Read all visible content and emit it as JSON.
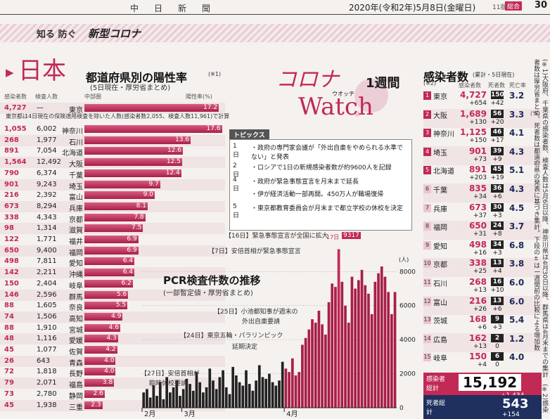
{
  "header": {
    "newspaper": "中日新聞",
    "date": "2020年(令和2年)5月8日(金曜日)",
    "edition": "11版",
    "badge": "総合",
    "page": "30"
  },
  "band": {
    "brand_prefix": "知る 防ぐ",
    "brand_main": "新型コロナ"
  },
  "japan": {
    "label": "日本",
    "title": "都道府県別の陽性率",
    "note_mark": "(※1)",
    "source": "(5日現在・厚労省まとめ)",
    "col_cases": "感染者数",
    "col_tests": "検査人数",
    "col_bar_label": "中部圏",
    "col_rate": "陽性率(%)",
    "tokyo_footnote": "東京都は4日現在の保険適用検査を除いた人数(感染者数2,055、検査人数11,961)で計算",
    "rows": [
      {
        "cases": "4,727",
        "tests": "—",
        "pref": "東京",
        "rate": "17.2"
      },
      {
        "cases": "1,055",
        "tests": "6,002",
        "pref": "神奈川",
        "rate": "17.6"
      },
      {
        "cases": "268",
        "tests": "1,977",
        "pref": "石川",
        "rate": "13.6"
      },
      {
        "cases": "891",
        "tests": "7,054",
        "pref": "北海道",
        "rate": "12.6"
      },
      {
        "cases": "1,564",
        "tests": "12,492",
        "pref": "大阪",
        "rate": "12.5"
      },
      {
        "cases": "790",
        "tests": "6,374",
        "pref": "千葉",
        "rate": "12.4"
      },
      {
        "cases": "901",
        "tests": "9,243",
        "pref": "埼玉",
        "rate": "9.7"
      },
      {
        "cases": "216",
        "tests": "2,392",
        "pref": "富山",
        "rate": "9.0"
      },
      {
        "cases": "673",
        "tests": "8,294",
        "pref": "兵庫",
        "rate": "8.1"
      },
      {
        "cases": "338",
        "tests": "4,343",
        "pref": "京都",
        "rate": "7.8"
      },
      {
        "cases": "98",
        "tests": "1,314",
        "pref": "滋賀",
        "rate": "7.5"
      },
      {
        "cases": "122",
        "tests": "1,771",
        "pref": "福井",
        "rate": "6.9"
      },
      {
        "cases": "650",
        "tests": "9,400",
        "pref": "福岡",
        "rate": "6.9"
      },
      {
        "cases": "498",
        "tests": "7,811",
        "pref": "愛知",
        "rate": "6.4"
      },
      {
        "cases": "142",
        "tests": "2,211",
        "pref": "沖縄",
        "rate": "6.4"
      },
      {
        "cases": "150",
        "tests": "2,404",
        "pref": "岐阜",
        "rate": "6.2"
      },
      {
        "cases": "146",
        "tests": "2,596",
        "pref": "群馬",
        "rate": "5.6"
      },
      {
        "cases": "88",
        "tests": "1,605",
        "pref": "奈良",
        "rate": "5.5"
      },
      {
        "cases": "74",
        "tests": "1,506",
        "pref": "高知",
        "rate": "4.9"
      },
      {
        "cases": "88",
        "tests": "1,910",
        "pref": "宮城",
        "rate": "4.6"
      },
      {
        "cases": "48",
        "tests": "1,116",
        "pref": "愛媛",
        "rate": "4.3"
      },
      {
        "cases": "45",
        "tests": "1,077",
        "pref": "佐賀",
        "rate": "4.2"
      },
      {
        "cases": "26",
        "tests": "643",
        "pref": "青森",
        "rate": "4.0"
      },
      {
        "cases": "72",
        "tests": "1,818",
        "pref": "長野",
        "rate": "4.0"
      },
      {
        "cases": "79",
        "tests": "2,071",
        "pref": "福島",
        "rate": "3.8"
      },
      {
        "cases": "73",
        "tests": "2,780",
        "pref": "静岡",
        "rate": "2.6"
      },
      {
        "cases": "45",
        "tests": "1,938",
        "pref": "三重",
        "rate": "2.3"
      }
    ]
  },
  "watch": {
    "corona": "コロナ",
    "week": "1週間",
    "watch": "Watch",
    "ruby": "ウオッチ"
  },
  "topics": {
    "label": "トピックス",
    "items": [
      {
        "day": "1日",
        "text": "・政府の専門家会議が「外出自粛をやめられる水準でない」と発表"
      },
      {
        "day": "2日",
        "text": "・ロシアで1日の新規感染者数が約9600人を記録"
      },
      {
        "day": "4日",
        "text": "・政府が緊急事態宣言を月末まで延長"
      },
      {
        "day": "",
        "text": "・伊が経済活動一部再開。450万人が職場復帰"
      },
      {
        "day": "5日",
        "text": "・東京都教育委員会が月末まで都立学校の休校を決定"
      }
    ]
  },
  "pcr": {
    "title": "PCR検査件数の推移",
    "source": "(一部暫定値・厚労省まとめ)",
    "ann_16": "【16日】緊急事態宣言が全国に拡大",
    "ann_7": "【7日】安倍首相が緊急事態宣言",
    "ann_25a": "【25日】小池都知事が週末の",
    "ann_25b": "外出自粛要請",
    "ann_24a": "【24日】東京五輪・パラリンピック",
    "ann_24b": "延期決定",
    "ann_27a": "【27日】安倍首相が",
    "ann_27b": "臨時休校要請",
    "peak_label": "17日",
    "peak_value": "9317",
    "unit": "(人)"
  },
  "cases": {
    "title": "感染者数",
    "title_sub": "(累計・5日現在)",
    "note": "(※2)",
    "col_cases": "感染者数",
    "col_deaths": "死者数",
    "col_rate": "死亡率",
    "col_pct": "(%)",
    "rows": [
      {
        "no": "1",
        "pref": "東京",
        "cases": "4,727",
        "inc": "+654",
        "deaths": "150",
        "dinc": "+42",
        "rate": "3.2"
      },
      {
        "no": "2",
        "pref": "大阪",
        "cases": "1,689",
        "inc": "+130",
        "deaths": "56",
        "dinc": "+20",
        "rate": "3.3"
      },
      {
        "no": "3",
        "pref": "神奈川",
        "cases": "1,125",
        "inc": "+150",
        "deaths": "46",
        "dinc": "+17",
        "rate": "4.1"
      },
      {
        "no": "4",
        "pref": "埼玉",
        "cases": "901",
        "inc": "+73",
        "deaths": "39",
        "dinc": "+9",
        "rate": "4.3"
      },
      {
        "no": "5",
        "pref": "北海道",
        "cases": "891",
        "inc": "+203",
        "deaths": "45",
        "dinc": "+19",
        "rate": "5.1"
      },
      {
        "no": "6",
        "pref": "千葉",
        "cases": "835",
        "inc": "+34",
        "deaths": "36",
        "dinc": "+6",
        "rate": "4.3"
      },
      {
        "no": "7",
        "pref": "兵庫",
        "cases": "673",
        "inc": "+37",
        "deaths": "30",
        "dinc": "+3",
        "rate": "4.5"
      },
      {
        "no": "8",
        "pref": "福岡",
        "cases": "650",
        "inc": "+31",
        "deaths": "24",
        "dinc": "+8",
        "rate": "3.7"
      },
      {
        "no": "9",
        "pref": "愛知",
        "cases": "498",
        "inc": "+16",
        "deaths": "34",
        "dinc": "+3",
        "rate": "6.8"
      },
      {
        "no": "10",
        "pref": "京都",
        "cases": "338",
        "inc": "+25",
        "deaths": "13",
        "dinc": "+4",
        "rate": "3.8"
      },
      {
        "no": "11",
        "pref": "石川",
        "cases": "268",
        "inc": "+13",
        "deaths": "16",
        "dinc": "+10",
        "rate": "6.0"
      },
      {
        "no": "12",
        "pref": "富山",
        "cases": "216",
        "inc": "+26",
        "deaths": "13",
        "dinc": "+6",
        "rate": "6.0"
      },
      {
        "no": "13",
        "pref": "茨城",
        "cases": "168",
        "inc": "+6",
        "deaths": "9",
        "dinc": "+3",
        "rate": "5.4"
      },
      {
        "no": "14",
        "pref": "広島",
        "cases": "162",
        "inc": "+13",
        "deaths": "2",
        "dinc": "0",
        "rate": "1.2"
      },
      {
        "no": "15",
        "pref": "岐阜",
        "cases": "150",
        "inc": "+4",
        "deaths": "6",
        "dinc": "0",
        "rate": "4.0"
      }
    ],
    "total_label": "感染者総計",
    "total": "15,192",
    "total_inc": "+1,434",
    "death_label": "死者総計",
    "death_total": "543",
    "death_inc": "+154"
  },
  "footnotes": {
    "text": "(※1)大阪府、千葉県の感染者数、検査人数は5月6日以降、神奈川県は4月30日以降、群馬県は4月末までの集計　(※2)感染者数は厚労省まとめ、死者数は都道府県の発表に基づき集計。下段の±は一週間前の比較による増加数"
  },
  "chart_data": [
    {
      "type": "bar",
      "title": "都道府県別の陽性率",
      "xlabel": "",
      "ylabel": "陽性率(%)",
      "categories": [
        "東京",
        "神奈川",
        "石川",
        "北海道",
        "大阪",
        "千葉",
        "埼玉",
        "富山",
        "兵庫",
        "京都",
        "滋賀",
        "福井",
        "福岡",
        "愛知",
        "沖縄",
        "岐阜",
        "群馬",
        "奈良",
        "高知",
        "宮城",
        "愛媛",
        "佐賀",
        "青森",
        "長野",
        "福島",
        "静岡",
        "三重"
      ],
      "values": [
        17.2,
        17.6,
        13.6,
        12.6,
        12.5,
        12.4,
        9.7,
        9.0,
        8.1,
        7.8,
        7.5,
        6.9,
        6.9,
        6.4,
        6.4,
        6.2,
        5.6,
        5.5,
        4.9,
        4.6,
        4.3,
        4.2,
        4.0,
        4.0,
        3.8,
        2.6,
        2.3
      ],
      "xlim": [
        0,
        18
      ]
    },
    {
      "type": "bar",
      "title": "PCR検査件数の推移",
      "xlabel": "",
      "ylabel": "(人)",
      "x": [
        "2020-02-18",
        "2020-02-19",
        "2020-02-20",
        "2020-02-21",
        "2020-02-22",
        "2020-02-23",
        "2020-02-24",
        "2020-02-25",
        "2020-02-26",
        "2020-02-27",
        "2020-02-28",
        "2020-02-29",
        "2020-03-01",
        "2020-03-02",
        "2020-03-03",
        "2020-03-04",
        "2020-03-05",
        "2020-03-06",
        "2020-03-07",
        "2020-03-08",
        "2020-03-09",
        "2020-03-10",
        "2020-03-11",
        "2020-03-12",
        "2020-03-13",
        "2020-03-14",
        "2020-03-15",
        "2020-03-16",
        "2020-03-17",
        "2020-03-18",
        "2020-03-19",
        "2020-03-20",
        "2020-03-21",
        "2020-03-22",
        "2020-03-23",
        "2020-03-24",
        "2020-03-25",
        "2020-03-26",
        "2020-03-27",
        "2020-03-28",
        "2020-03-29",
        "2020-03-30",
        "2020-03-31",
        "2020-04-01",
        "2020-04-02",
        "2020-04-03",
        "2020-04-04",
        "2020-04-05",
        "2020-04-06",
        "2020-04-07",
        "2020-04-08",
        "2020-04-09",
        "2020-04-10",
        "2020-04-11",
        "2020-04-12",
        "2020-04-13",
        "2020-04-14",
        "2020-04-15",
        "2020-04-16",
        "2020-04-17",
        "2020-04-18",
        "2020-04-19",
        "2020-04-20",
        "2020-04-21",
        "2020-04-22",
        "2020-04-23",
        "2020-04-24",
        "2020-04-25",
        "2020-04-26",
        "2020-04-27",
        "2020-04-28",
        "2020-04-29",
        "2020-04-30",
        "2020-05-01",
        "2020-05-02",
        "2020-05-03",
        "2020-05-04"
      ],
      "values": [
        900,
        1100,
        600,
        1300,
        700,
        1500,
        500,
        1800,
        900,
        1200,
        1600,
        700,
        1100,
        1700,
        1400,
        1000,
        2100,
        1500,
        900,
        1200,
        2300,
        1600,
        1100,
        1800,
        2200,
        1200,
        800,
        2400,
        1900,
        1500,
        1300,
        2200,
        1400,
        1000,
        1600,
        2500,
        1800,
        1700,
        2000,
        1500,
        1300,
        1600,
        2700,
        2300,
        2100,
        2900,
        1900,
        2100,
        3700,
        4100,
        4600,
        5200,
        5000,
        5700,
        4900,
        4300,
        6200,
        7300,
        7100,
        9317,
        7400,
        6000,
        5000,
        7700,
        7000,
        7500,
        8100,
        7200,
        6700,
        5500,
        7400,
        7900,
        8300,
        7700,
        6800,
        5500,
        6800
      ],
      "ylim": [
        0,
        9500
      ],
      "yticks": [
        2000,
        4000,
        6000,
        8000
      ],
      "month_labels": [
        "2月",
        "3月",
        "4月"
      ]
    }
  ]
}
